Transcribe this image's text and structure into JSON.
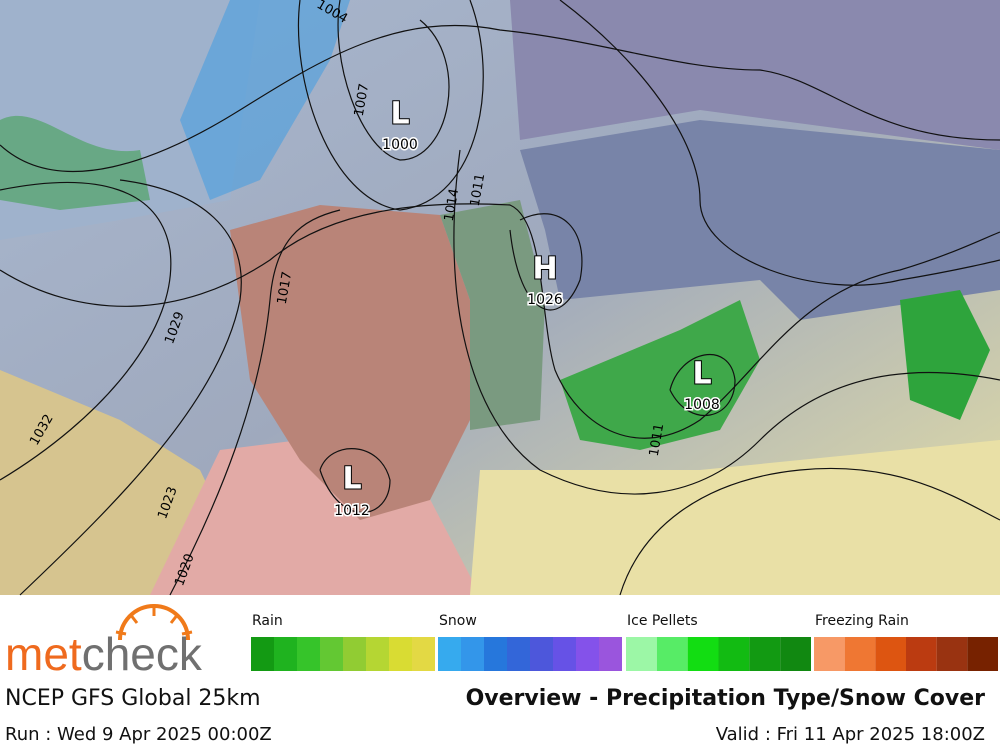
{
  "map": {
    "centers": [
      {
        "symbol": "L",
        "pressure": "1000"
      },
      {
        "symbol": "H",
        "pressure": "1026"
      },
      {
        "symbol": "L",
        "pressure": "1008"
      },
      {
        "symbol": "L",
        "pressure": "1012"
      }
    ],
    "isobar_labels": [
      "1004",
      "1007",
      "1014",
      "1011",
      "1017",
      "1029",
      "1032",
      "1023",
      "1020",
      "1011"
    ]
  },
  "legend": {
    "groups": [
      {
        "name": "Rain",
        "colors": [
          "#139a13",
          "#1fb31f",
          "#36c42a",
          "#63c833",
          "#91cc33",
          "#b5d633",
          "#d9dc33",
          "#e3d944"
        ]
      },
      {
        "name": "Snow",
        "colors": [
          "#36aaee",
          "#3396ea",
          "#2677dc",
          "#3366d9",
          "#4d57db",
          "#6652e6",
          "#8452ea",
          "#9a55dd"
        ]
      },
      {
        "name": "Ice Pellets",
        "colors": [
          "#9cf7a6",
          "#57ec66",
          "#12dd12",
          "#12bb12",
          "#129a12",
          "#118811"
        ]
      },
      {
        "name": "Freezing Rain",
        "colors": [
          "#f79966",
          "#ef7733",
          "#dd5511",
          "#bb3b11",
          "#993311",
          "#772200"
        ]
      }
    ]
  },
  "logo": {
    "part1": "met",
    "part2": "check"
  },
  "footer": {
    "model": "NCEP GFS Global 25km",
    "title": "Overview - Precipitation Type/Snow Cover",
    "run": "Run : Wed 9 Apr 2025 00:00Z",
    "valid": "Valid : Fri 11 Apr 2025 18:00Z"
  }
}
